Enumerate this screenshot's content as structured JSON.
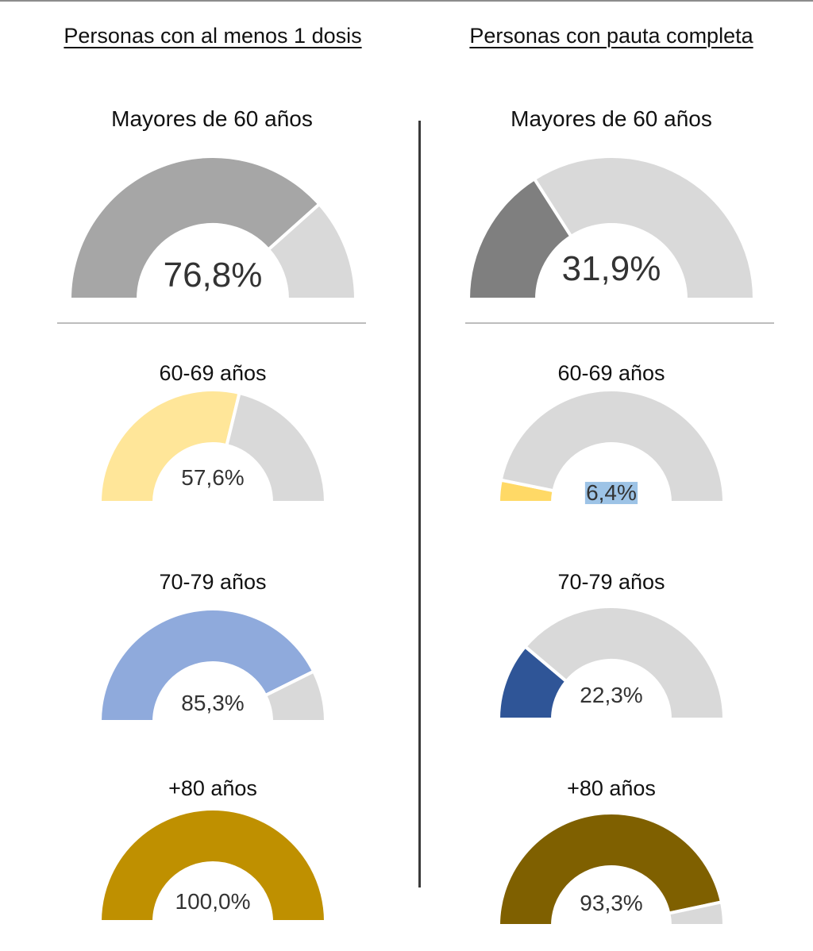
{
  "columns": {
    "left_title": "Personas con al menos 1 dosis",
    "right_title": "Personas con pauta completa"
  },
  "colors": {
    "remainder": "#d9d9d9",
    "highlight_label_bg": "#9dc3e6"
  },
  "chart_data": [
    {
      "type": "gauge",
      "column": "Personas con al menos 1 dosis",
      "title": "Mayores de 60 años",
      "value": 76.8,
      "max": 100,
      "label": "76,8%",
      "color": "#a6a6a6"
    },
    {
      "type": "gauge",
      "column": "Personas con al menos 1 dosis",
      "title": "60-69 años",
      "value": 57.6,
      "max": 100,
      "label": "57,6%",
      "color": "#ffe699"
    },
    {
      "type": "gauge",
      "column": "Personas con al menos 1 dosis",
      "title": "70-79 años",
      "value": 85.3,
      "max": 100,
      "label": "85,3%",
      "color": "#8faadc"
    },
    {
      "type": "gauge",
      "column": "Personas con al menos 1 dosis",
      "title": "+80 años",
      "value": 100.0,
      "max": 100,
      "label": "100,0%",
      "color": "#bf9000"
    },
    {
      "type": "gauge",
      "column": "Personas con pauta completa",
      "title": "Mayores de 60 años",
      "value": 31.9,
      "max": 100,
      "label": "31,9%",
      "color": "#7f7f7f"
    },
    {
      "type": "gauge",
      "column": "Personas con pauta completa",
      "title": "60-69 años",
      "value": 6.4,
      "max": 100,
      "label": "6,4%",
      "color": "#ffd966",
      "label_highlight": true
    },
    {
      "type": "gauge",
      "column": "Personas con pauta completa",
      "title": "70-79 años",
      "value": 22.3,
      "max": 100,
      "label": "22,3%",
      "color": "#2f5597"
    },
    {
      "type": "gauge",
      "column": "Personas con pauta completa",
      "title": "+80 años",
      "value": 93.3,
      "max": 100,
      "label": "93,3%",
      "color": "#7f6000"
    }
  ]
}
